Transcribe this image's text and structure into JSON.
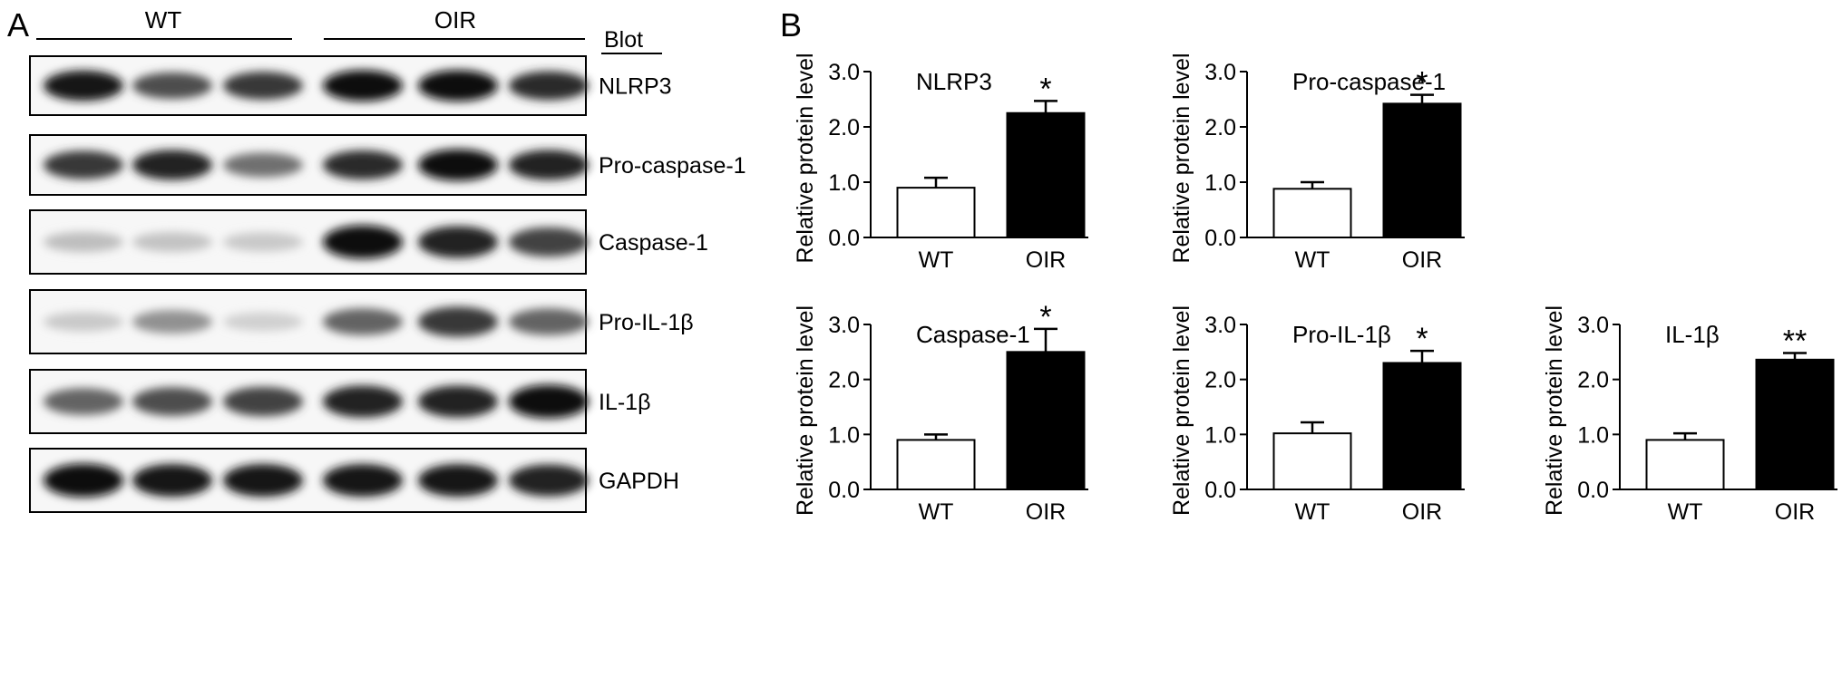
{
  "panel_a": {
    "letter": "A",
    "groups": [
      {
        "label": "WT"
      },
      {
        "label": "OIR"
      }
    ],
    "blot_header": "Blot",
    "blots": [
      {
        "label": "NLRP3",
        "intensity": [
          0.95,
          0.7,
          0.8,
          1.0,
          1.0,
          0.85
        ]
      },
      {
        "label": "Pro-caspase-1",
        "intensity": [
          0.8,
          0.9,
          0.55,
          0.85,
          1.0,
          0.9
        ]
      },
      {
        "label": "Caspase-1",
        "intensity": [
          0.2,
          0.18,
          0.15,
          1.0,
          0.9,
          0.75
        ]
      },
      {
        "label": "Pro-IL-1β",
        "intensity": [
          0.15,
          0.4,
          0.12,
          0.6,
          0.8,
          0.6
        ]
      },
      {
        "label": "IL-1β",
        "intensity": [
          0.6,
          0.7,
          0.75,
          0.9,
          0.9,
          1.0
        ]
      },
      {
        "label": "GAPDH",
        "intensity": [
          1.0,
          0.95,
          0.95,
          0.95,
          0.95,
          0.9
        ]
      }
    ]
  },
  "panel_b": {
    "letter": "B"
  },
  "chart_data": [
    {
      "type": "bar",
      "title": "NLRP3",
      "categories": [
        "WT",
        "OIR"
      ],
      "values": [
        0.9,
        2.25
      ],
      "errors": [
        0.18,
        0.22
      ],
      "significance": [
        "",
        "*"
      ],
      "ylabel": "Relative protein level",
      "ylim": [
        0,
        3
      ],
      "yticks": [
        "0.0",
        "1.0",
        "2.0",
        "3.0"
      ]
    },
    {
      "type": "bar",
      "title": "Pro-caspase-1",
      "categories": [
        "WT",
        "OIR"
      ],
      "values": [
        0.88,
        2.42
      ],
      "errors": [
        0.12,
        0.16
      ],
      "significance": [
        "",
        "*"
      ],
      "ylabel": "Relative protein level",
      "ylim": [
        0,
        3
      ],
      "yticks": [
        "0.0",
        "1.0",
        "2.0",
        "3.0"
      ]
    },
    {
      "type": "bar",
      "title": "Caspase-1",
      "categories": [
        "WT",
        "OIR"
      ],
      "values": [
        0.9,
        2.5
      ],
      "errors": [
        0.1,
        0.42
      ],
      "significance": [
        "",
        "*"
      ],
      "ylabel": "Relative protein level",
      "ylim": [
        0,
        3
      ],
      "yticks": [
        "0.0",
        "1.0",
        "2.0",
        "3.0"
      ]
    },
    {
      "type": "bar",
      "title": "Pro-IL-1β",
      "categories": [
        "WT",
        "OIR"
      ],
      "values": [
        1.02,
        2.3
      ],
      "errors": [
        0.2,
        0.22
      ],
      "significance": [
        "",
        "*"
      ],
      "ylabel": "Relative protein level",
      "ylim": [
        0,
        3
      ],
      "yticks": [
        "0.0",
        "1.0",
        "2.0",
        "3.0"
      ]
    },
    {
      "type": "bar",
      "title": "IL-1β",
      "categories": [
        "WT",
        "OIR"
      ],
      "values": [
        0.9,
        2.36
      ],
      "errors": [
        0.12,
        0.12
      ],
      "significance": [
        "",
        "**"
      ],
      "ylabel": "Relative protein level",
      "ylim": [
        0,
        3
      ],
      "yticks": [
        "0.0",
        "1.0",
        "2.0",
        "3.0"
      ]
    }
  ]
}
